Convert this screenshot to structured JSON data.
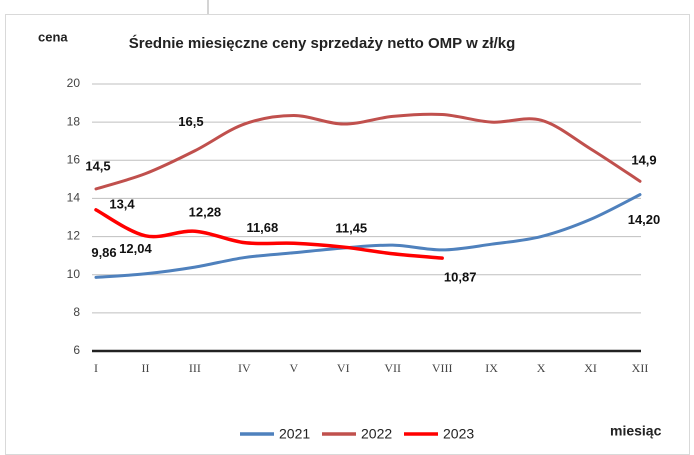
{
  "chart_data": {
    "type": "line",
    "title": "Średnie miesięczne ceny sprzedaży netto OMP w zł/kg",
    "y_label": "cena",
    "x_label": "miesiąc",
    "categories": [
      "I",
      "II",
      "III",
      "IV",
      "V",
      "VI",
      "VII",
      "VIII",
      "IX",
      "X",
      "XI",
      "XII"
    ],
    "series": [
      {
        "name": "2021",
        "color": "#4f81bd",
        "values": [
          9.86,
          10.05,
          10.4,
          10.9,
          11.15,
          11.4,
          11.55,
          11.3,
          11.6,
          12.0,
          12.9,
          14.2
        ],
        "value_labels": [
          "9,86",
          null,
          null,
          null,
          null,
          null,
          null,
          null,
          null,
          null,
          null,
          "14,20"
        ]
      },
      {
        "name": "2022",
        "color": "#c0504d",
        "values": [
          14.5,
          15.3,
          16.5,
          17.9,
          18.35,
          17.9,
          18.3,
          18.4,
          18.0,
          18.1,
          16.6,
          14.9
        ],
        "value_labels": [
          "14,5",
          null,
          "16,5",
          null,
          null,
          null,
          null,
          null,
          null,
          null,
          null,
          "14,9"
        ]
      },
      {
        "name": "2023",
        "color": "#ff0000",
        "values": [
          13.4,
          12.04,
          12.28,
          11.68,
          11.65,
          11.45,
          11.1,
          10.87,
          null,
          null,
          null,
          null
        ],
        "value_labels": [
          "13,4",
          "12,04",
          "12,28",
          "11,68",
          null,
          "11,45",
          null,
          "10,87",
          null,
          null,
          null,
          null
        ]
      }
    ],
    "ylim": [
      6,
      20
    ],
    "yticks": [
      6,
      8,
      10,
      12,
      14,
      16,
      18,
      20
    ],
    "grid": true,
    "legend": "bottom"
  }
}
